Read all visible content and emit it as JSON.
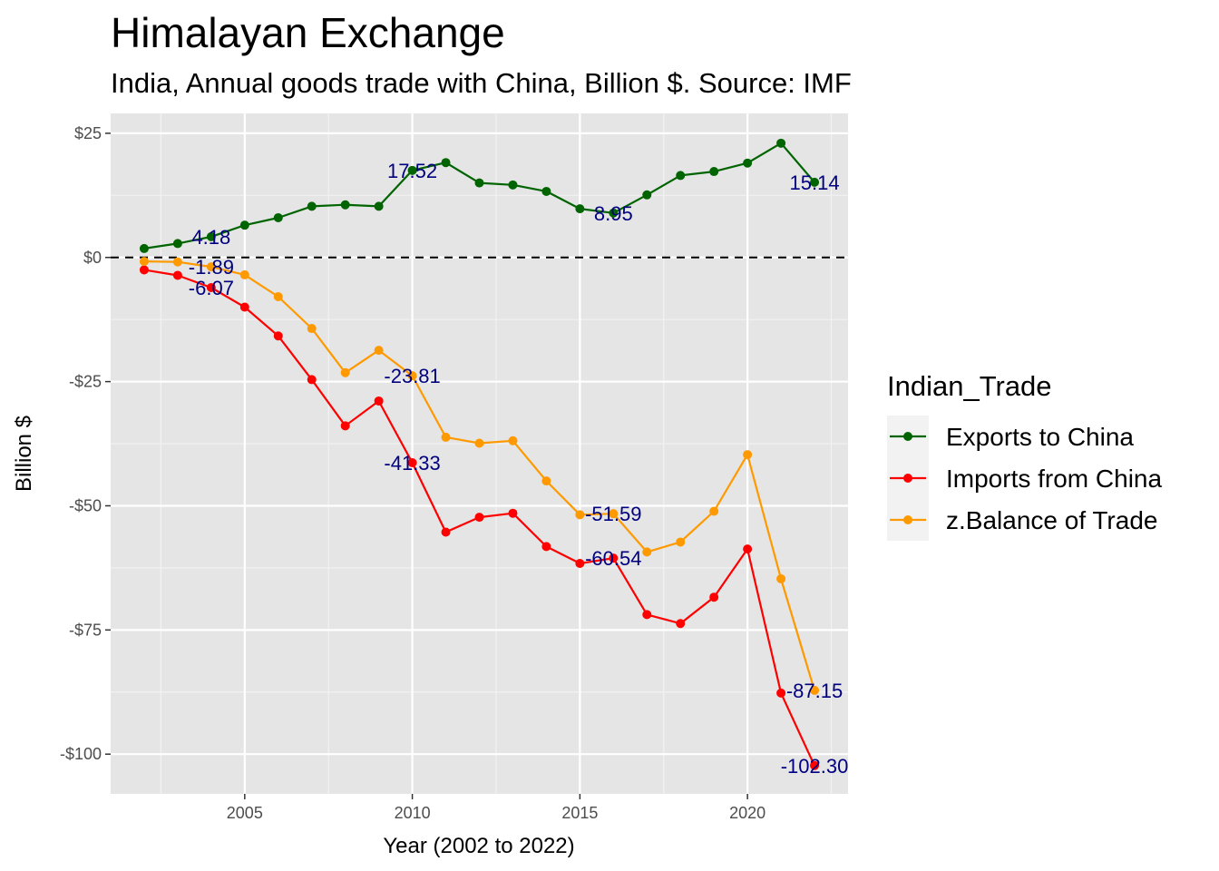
{
  "chart_data": {
    "type": "line",
    "title": "Himalayan Exchange",
    "subtitle": "India, Annual goods trade with China, Billion $. Source: IMF",
    "xlabel": "Year (2002 to 2022)",
    "ylabel": "Billion $",
    "xlim": [
      2001,
      2023
    ],
    "ylim": [
      -108,
      29
    ],
    "x_ticks": [
      2005,
      2010,
      2015,
      2020
    ],
    "y_ticks": [
      25,
      0,
      -25,
      -50,
      -75,
      -100
    ],
    "y_tick_labels": [
      "$25",
      "$0",
      "-$25",
      "-$50",
      "-$75",
      "-$100"
    ],
    "grid": true,
    "zero_line": "dashed",
    "legend": {
      "title": "Indian_Trade",
      "position": "right"
    },
    "x": [
      2002,
      2003,
      2004,
      2005,
      2006,
      2007,
      2008,
      2009,
      2010,
      2011,
      2012,
      2013,
      2014,
      2015,
      2016,
      2017,
      2018,
      2019,
      2020,
      2021,
      2022
    ],
    "series": [
      {
        "name": "Exports to China",
        "color": "#006400",
        "values": [
          1.8,
          2.8,
          4.18,
          6.5,
          8.0,
          10.3,
          10.6,
          10.3,
          17.52,
          19.1,
          15.0,
          14.6,
          13.3,
          9.8,
          8.95,
          12.6,
          16.5,
          17.3,
          19.0,
          23.0,
          15.14
        ]
      },
      {
        "name": "Imports from China",
        "color": "#ff0000",
        "values": [
          -2.5,
          -3.6,
          -6.07,
          -10.0,
          -15.8,
          -24.6,
          -33.9,
          -28.9,
          -41.33,
          -55.3,
          -52.3,
          -51.5,
          -58.2,
          -61.6,
          -60.54,
          -71.9,
          -73.7,
          -68.4,
          -58.7,
          -87.7,
          -102.3
        ]
      },
      {
        "name": "z.Balance of Trade",
        "color": "#ff9900",
        "values": [
          -0.8,
          -0.9,
          -1.89,
          -3.5,
          -7.9,
          -14.3,
          -23.2,
          -18.7,
          -23.81,
          -36.2,
          -37.4,
          -36.9,
          -45.0,
          -51.8,
          -51.59,
          -59.3,
          -57.3,
          -51.1,
          -39.7,
          -64.7,
          -87.15
        ]
      }
    ],
    "annotations": [
      {
        "x": 2004,
        "y": 4.18,
        "text": "4.18"
      },
      {
        "x": 2010,
        "y": 17.52,
        "text": "17.52"
      },
      {
        "x": 2016,
        "y": 8.95,
        "text": "8.95"
      },
      {
        "x": 2022,
        "y": 15.14,
        "text": "15.14"
      },
      {
        "x": 2004,
        "y": -1.89,
        "text": "-1.89"
      },
      {
        "x": 2004,
        "y": -6.07,
        "text": "-6.07"
      },
      {
        "x": 2010,
        "y": -23.81,
        "text": "-23.81"
      },
      {
        "x": 2010,
        "y": -41.33,
        "text": "-41.33"
      },
      {
        "x": 2016,
        "y": -51.59,
        "text": "-51.59"
      },
      {
        "x": 2016,
        "y": -60.54,
        "text": "-60.54"
      },
      {
        "x": 2022,
        "y": -87.15,
        "text": "-87.15"
      },
      {
        "x": 2022,
        "y": -102.3,
        "text": "-102.30"
      }
    ]
  }
}
